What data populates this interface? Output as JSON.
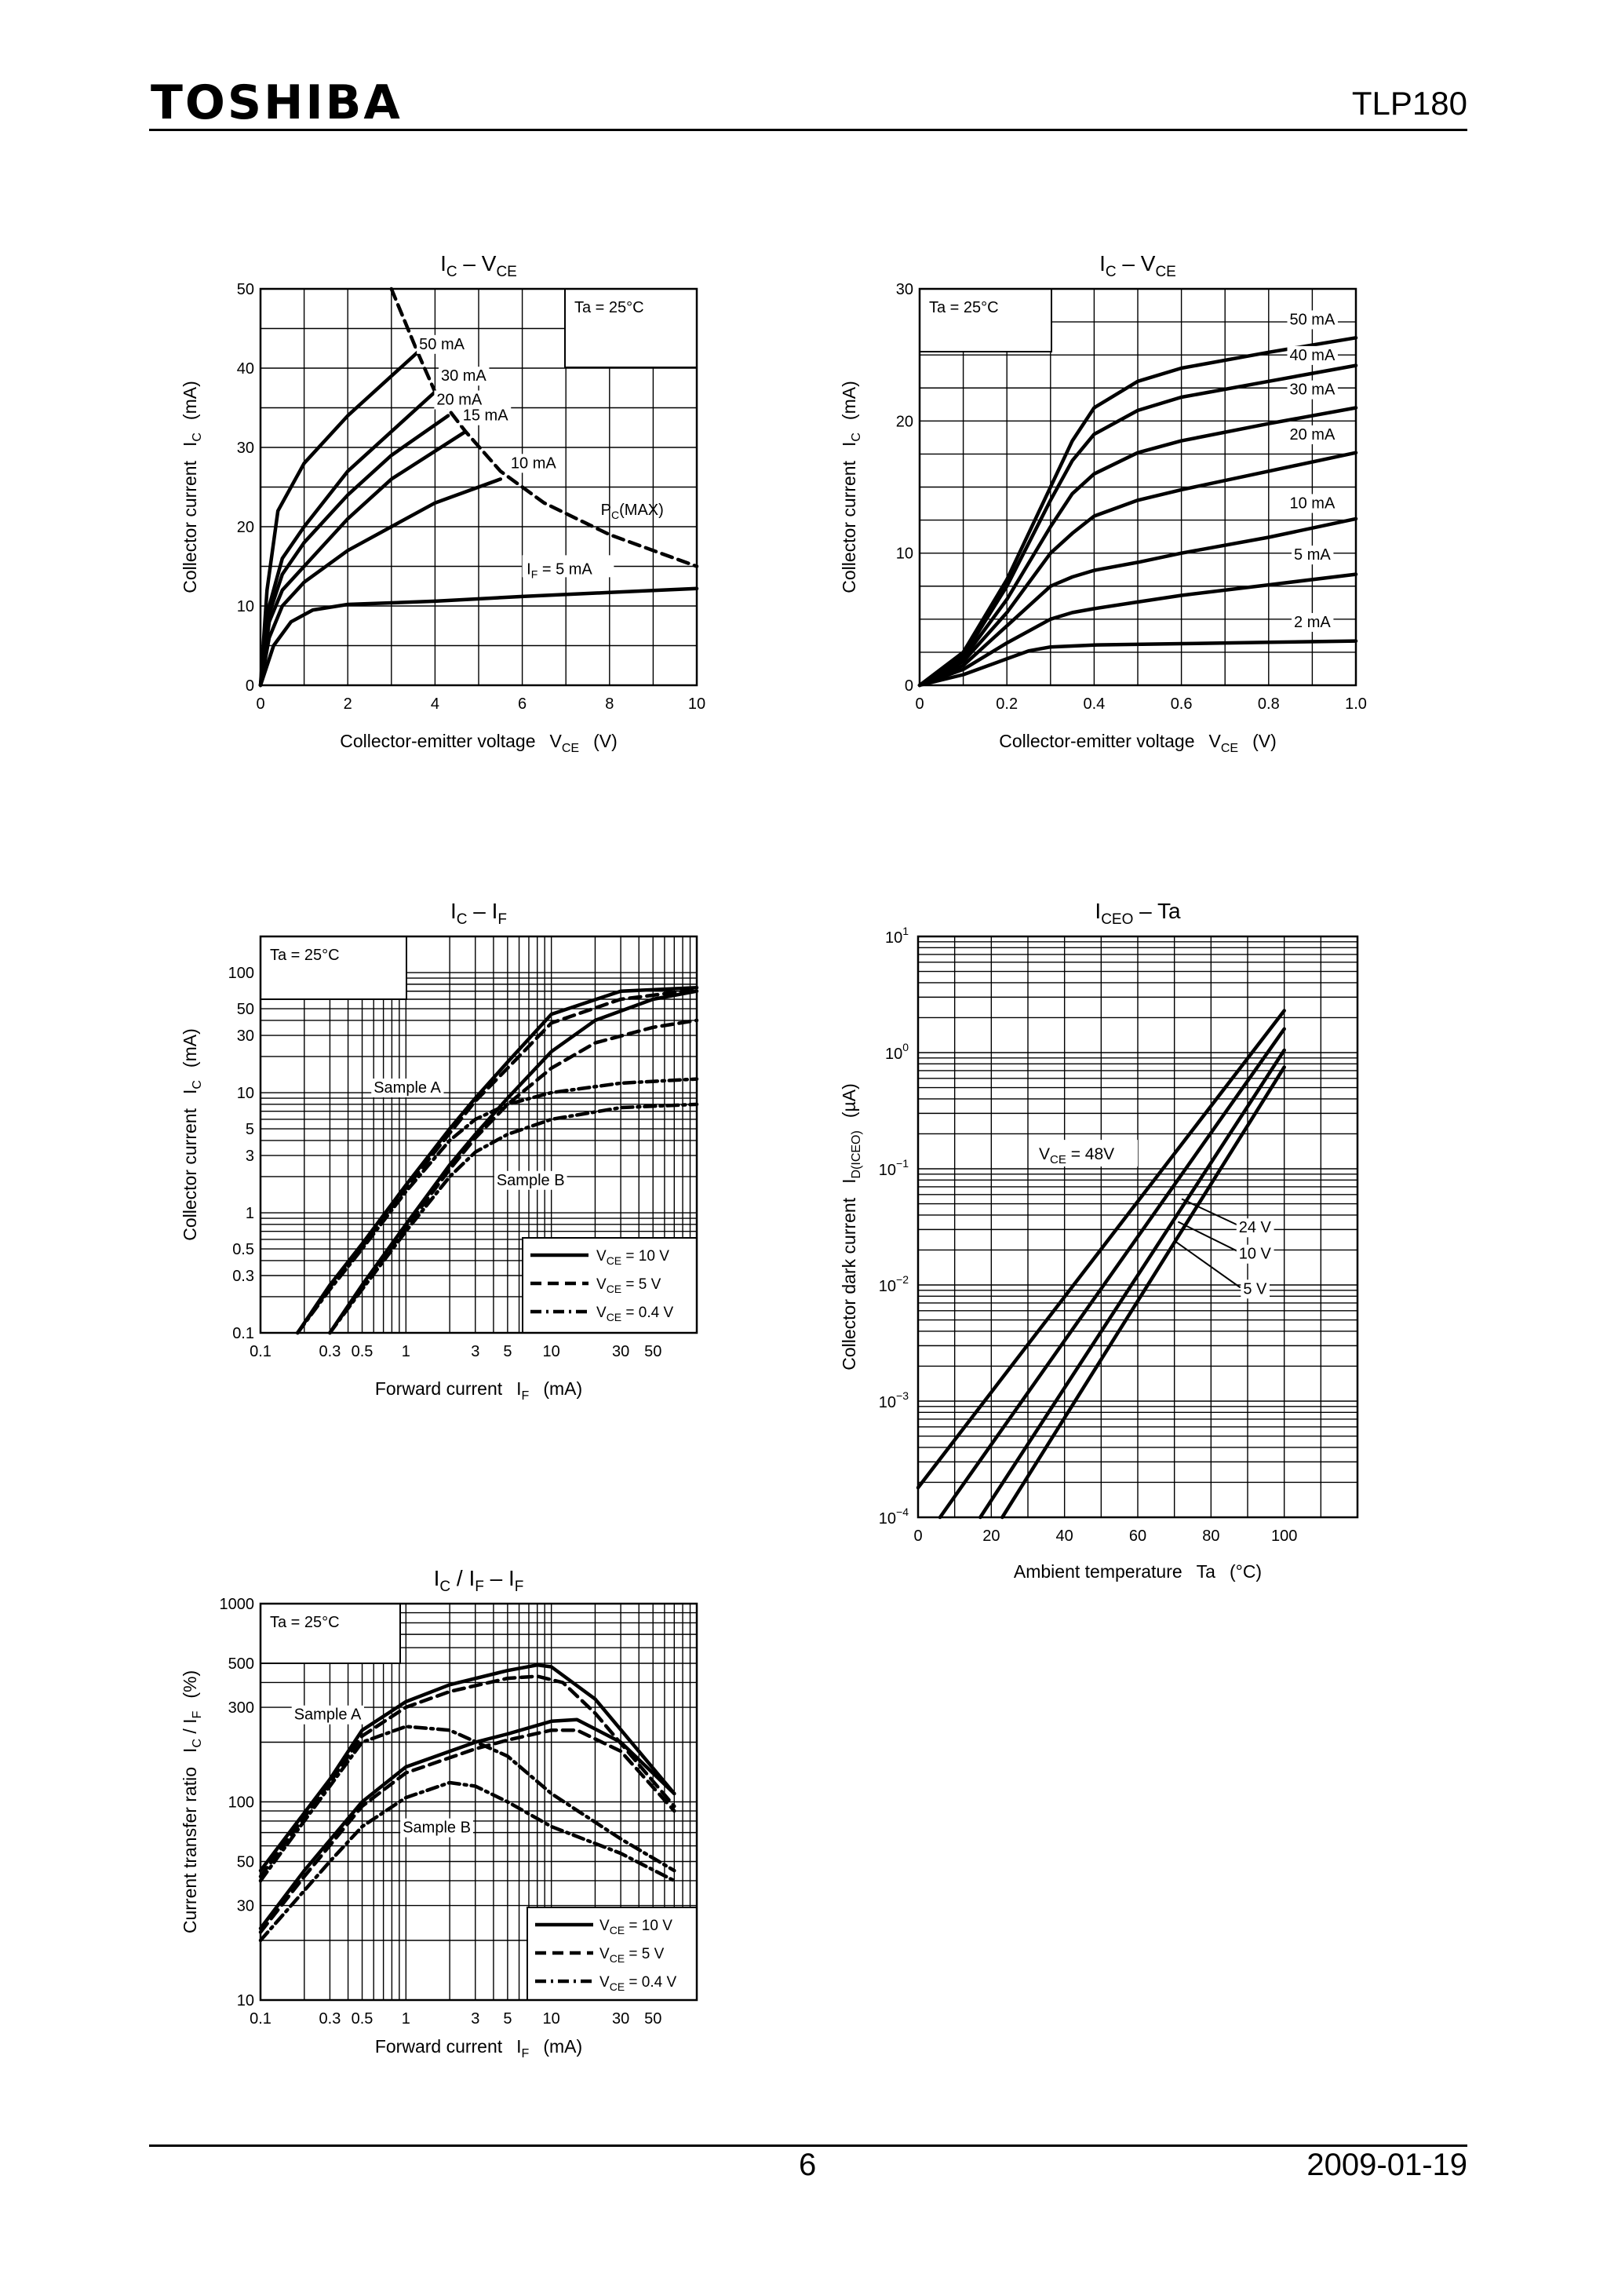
{
  "header": {
    "logo": "TOSHIBA",
    "part_number": "TLP180"
  },
  "footer": {
    "page": "6",
    "date": "2009-01-19"
  },
  "chart_data": [
    {
      "id": "ic_vce_10v",
      "type": "line",
      "title_main": "I",
      "title_sub1": "C",
      "title_mid": " – V",
      "title_sub2": "CE",
      "xlabel": "Collector-emitter voltage",
      "xlabel_sym": "V",
      "xlabel_sub": "CE",
      "xlabel_unit": "(V)",
      "ylabel": "Collector current",
      "ylabel_sym": "I",
      "ylabel_sub": "C",
      "ylabel_unit": "(mA)",
      "xlim": [
        0,
        10
      ],
      "ylim": [
        0,
        50
      ],
      "x_ticks": [
        "0",
        "2",
        "4",
        "6",
        "8",
        "10"
      ],
      "y_ticks": [
        "0",
        "10",
        "20",
        "30",
        "40",
        "50"
      ],
      "condition": "Ta = 25°C",
      "series": [
        {
          "name": "50 mA",
          "x": [
            0,
            0.15,
            0.4,
            1,
            2,
            3,
            3.6
          ],
          "y": [
            0,
            12,
            22,
            28,
            34,
            39,
            42
          ]
        },
        {
          "name": "30 mA",
          "x": [
            0,
            0.2,
            0.5,
            1,
            2,
            3,
            4
          ],
          "y": [
            0,
            10,
            16,
            20,
            27,
            32,
            37
          ]
        },
        {
          "name": "20 mA",
          "x": [
            0,
            0.2,
            0.5,
            1,
            2,
            3,
            4.3
          ],
          "y": [
            0,
            9,
            14,
            18,
            24,
            29,
            34
          ]
        },
        {
          "name": "15 mA",
          "x": [
            0,
            0.2,
            0.5,
            1,
            2,
            3,
            4.7
          ],
          "y": [
            0,
            8,
            12,
            15,
            21,
            26,
            32
          ]
        },
        {
          "name": "10 mA",
          "x": [
            0,
            0.2,
            0.5,
            1,
            2,
            3,
            4,
            5.5
          ],
          "y": [
            0,
            6,
            10,
            13,
            17,
            20,
            23,
            26
          ]
        },
        {
          "name": "IF = 5 mA",
          "x": [
            0,
            0.3,
            0.7,
            1.2,
            2,
            4,
            6,
            8,
            10
          ],
          "y": [
            0,
            5,
            8,
            9.5,
            10.2,
            10.6,
            11.2,
            11.7,
            12.2
          ]
        },
        {
          "name": "PC(MAX)",
          "style": "dashed",
          "x": [
            3,
            3.6,
            4,
            4.7,
            5.5,
            6.5,
            8,
            10
          ],
          "y": [
            50,
            42,
            37,
            32,
            27,
            23,
            19,
            15
          ]
        }
      ],
      "labels": [
        "50 mA",
        "30 mA",
        "20 mA",
        "15 mA",
        "10 mA",
        "P",
        "C",
        "(MAX)",
        "I",
        "F",
        " = 5 mA"
      ]
    },
    {
      "id": "ic_vce_1v",
      "type": "line",
      "title_main": "I",
      "title_sub1": "C",
      "title_mid": " – V",
      "title_sub2": "CE",
      "xlabel": "Collector-emitter voltage",
      "xlabel_sym": "V",
      "xlabel_sub": "CE",
      "xlabel_unit": "(V)",
      "ylabel": "Collector current",
      "ylabel_sym": "I",
      "ylabel_sub": "C",
      "ylabel_unit": "(mA)",
      "xlim": [
        0,
        1.0
      ],
      "ylim": [
        0,
        30
      ],
      "x_ticks": [
        "0",
        "0.2",
        "0.4",
        "0.6",
        "0.8",
        "1.0"
      ],
      "y_ticks": [
        "0",
        "10",
        "20",
        "30"
      ],
      "condition": "Ta = 25°C",
      "series": [
        {
          "name": "50 mA",
          "x": [
            0,
            0.1,
            0.2,
            0.3,
            0.35,
            0.4,
            0.5,
            0.6,
            0.8,
            1.0
          ],
          "y": [
            0,
            2.5,
            8,
            15,
            18.5,
            21,
            23,
            24,
            25.2,
            26.3
          ]
        },
        {
          "name": "40 mA",
          "x": [
            0,
            0.1,
            0.2,
            0.3,
            0.35,
            0.4,
            0.5,
            0.6,
            0.8,
            1.0
          ],
          "y": [
            0,
            2.2,
            7.5,
            14,
            17,
            19,
            20.8,
            21.8,
            23,
            24.2
          ]
        },
        {
          "name": "30 mA",
          "x": [
            0,
            0.1,
            0.2,
            0.3,
            0.35,
            0.4,
            0.5,
            0.6,
            0.8,
            1.0
          ],
          "y": [
            0,
            2,
            6.5,
            12,
            14.5,
            16,
            17.6,
            18.5,
            19.8,
            21
          ]
        },
        {
          "name": "20 mA",
          "x": [
            0,
            0.1,
            0.2,
            0.3,
            0.35,
            0.4,
            0.5,
            0.6,
            0.8,
            1.0
          ],
          "y": [
            0,
            1.8,
            5.5,
            10,
            11.5,
            12.8,
            14,
            14.8,
            16.2,
            17.6
          ]
        },
        {
          "name": "10 mA",
          "x": [
            0,
            0.1,
            0.2,
            0.3,
            0.35,
            0.4,
            0.5,
            0.6,
            0.8,
            1.0
          ],
          "y": [
            0,
            1.5,
            4.5,
            7.5,
            8.2,
            8.7,
            9.3,
            10,
            11.2,
            12.6
          ]
        },
        {
          "name": "5 mA",
          "x": [
            0,
            0.1,
            0.2,
            0.3,
            0.35,
            0.4,
            0.5,
            0.6,
            0.8,
            1.0
          ],
          "y": [
            0,
            1.2,
            3.2,
            5,
            5.5,
            5.8,
            6.3,
            6.8,
            7.6,
            8.4
          ]
        },
        {
          "name": "2 mA",
          "x": [
            0,
            0.1,
            0.2,
            0.25,
            0.3,
            0.4,
            0.6,
            0.8,
            1.0
          ],
          "y": [
            0,
            0.8,
            2,
            2.6,
            2.9,
            3.05,
            3.15,
            3.25,
            3.35
          ]
        }
      ],
      "labels": [
        "50 mA",
        "40 mA",
        "30 mA",
        "20 mA",
        "10 mA",
        "5 mA",
        "2 mA"
      ]
    },
    {
      "id": "ic_if",
      "type": "line",
      "title_main": "I",
      "title_sub1": "C",
      "title_mid": " – I",
      "title_sub2": "F",
      "xlabel": "Forward current",
      "xlabel_sym": "I",
      "xlabel_sub": "F",
      "xlabel_unit": "(mA)",
      "ylabel": "Collector current",
      "ylabel_sym": "I",
      "ylabel_sub": "C",
      "ylabel_unit": "(mA)",
      "xlim": [
        0.1,
        100
      ],
      "ylim": [
        0.1,
        200
      ],
      "x_ticks": [
        "0.1",
        "0.3",
        "0.5",
        "1",
        "3",
        "5",
        "10",
        "30",
        "50"
      ],
      "y_ticks": [
        "0.1",
        "0.3",
        "0.5",
        "1",
        "3",
        "5",
        "10",
        "30",
        "50",
        "100"
      ],
      "condition": "Ta = 25°C",
      "samples": [
        "Sample A",
        "Sample B"
      ],
      "legend": [
        {
          "sym": "V",
          "sub": "CE",
          "val": " = 10 V",
          "style": "solid"
        },
        {
          "sym": "V",
          "sub": "CE",
          "val": " = 5 V",
          "style": "dashed"
        },
        {
          "sym": "V",
          "sub": "CE",
          "val": " = 0.4 V",
          "style": "dashdot"
        }
      ],
      "series": [
        {
          "name": "Sample A 10V",
          "style": "solid",
          "x": [
            0.18,
            0.3,
            0.5,
            1,
            2,
            3,
            5,
            10,
            30,
            100
          ],
          "y": [
            0.1,
            0.25,
            0.55,
            1.7,
            5,
            9,
            18,
            45,
            70,
            75
          ]
        },
        {
          "name": "Sample A 5V",
          "style": "dashed",
          "x": [
            0.18,
            0.3,
            0.5,
            1,
            2,
            3,
            5,
            10,
            30,
            100
          ],
          "y": [
            0.1,
            0.24,
            0.52,
            1.6,
            4.6,
            8.5,
            16,
            38,
            60,
            72
          ]
        },
        {
          "name": "Sample A 0.4V",
          "style": "dashdot",
          "x": [
            0.18,
            0.3,
            0.5,
            1,
            2,
            3,
            5,
            10,
            30,
            100
          ],
          "y": [
            0.1,
            0.23,
            0.5,
            1.5,
            4,
            6,
            8,
            10,
            12,
            13
          ]
        },
        {
          "name": "Sample B 10V",
          "style": "solid",
          "x": [
            0.3,
            0.5,
            1,
            2,
            3,
            5,
            10,
            20,
            50,
            100
          ],
          "y": [
            0.1,
            0.25,
            0.8,
            2.5,
            4.5,
            9,
            22,
            40,
            60,
            70
          ]
        },
        {
          "name": "Sample B 5V",
          "style": "dashed",
          "x": [
            0.3,
            0.5,
            1,
            2,
            3,
            5,
            10,
            20,
            50,
            100
          ],
          "y": [
            0.1,
            0.24,
            0.75,
            2.3,
            4.2,
            8,
            16,
            26,
            35,
            40
          ]
        },
        {
          "name": "Sample B 0.4V",
          "style": "dashdot",
          "x": [
            0.3,
            0.5,
            1,
            2,
            3,
            5,
            10,
            30,
            100
          ],
          "y": [
            0.1,
            0.23,
            0.7,
            2,
            3.2,
            4.5,
            6,
            7.5,
            8
          ]
        }
      ]
    },
    {
      "id": "iceo_ta",
      "type": "line",
      "title_main": "I",
      "title_sub1": "CEO",
      "title_mid": " – Ta",
      "title_sub2": "",
      "xlabel": "Ambient temperature",
      "xlabel_sym": "Ta",
      "xlabel_sub": "",
      "xlabel_unit": "(°C)",
      "ylabel": "Collector dark current",
      "ylabel_sym": "I",
      "ylabel_sub": "D(ICEO)",
      "ylabel_unit": "(µA)",
      "xlim": [
        0,
        120
      ],
      "ylim": [
        0.0001,
        10
      ],
      "x_ticks": [
        "0",
        "20",
        "40",
        "60",
        "80",
        "100"
      ],
      "y_ticks": [
        "10",
        "10",
        "10",
        "10",
        "10",
        "10"
      ],
      "y_exps": [
        "−4",
        "−3",
        "−2",
        "−1",
        "0",
        "1"
      ],
      "annotation": {
        "sym": "V",
        "sub": "CE",
        "val": " = 48V"
      },
      "series": [
        {
          "name": "48 V",
          "x": [
            0,
            100
          ],
          "y": [
            0.00018,
            2.3
          ]
        },
        {
          "name": "24 V",
          "x": [
            6,
            100
          ],
          "y": [
            0.0001,
            1.6
          ]
        },
        {
          "name": "10 V",
          "x": [
            17,
            100
          ],
          "y": [
            0.0001,
            1.05
          ]
        },
        {
          "name": "5 V",
          "x": [
            23,
            100
          ],
          "y": [
            0.0001,
            0.75
          ]
        }
      ],
      "labels": [
        "24 V",
        "10 V",
        "5 V"
      ]
    },
    {
      "id": "ctr_if",
      "type": "line",
      "title_main": "I",
      "title_sub1": "C",
      "title_mid": " / I",
      "title_sub2": "F",
      "title_tail": " – I",
      "title_sub3": "F",
      "xlabel": "Forward current",
      "xlabel_sym": "I",
      "xlabel_sub": "F",
      "xlabel_unit": "(mA)",
      "ylabel": "Current transfer ratio",
      "ylabel_sym": "I",
      "ylabel_sub": "C",
      "ylabel_mid": " / I",
      "ylabel_sub2": "F",
      "ylabel_unit": "(%)",
      "xlim": [
        0.1,
        100
      ],
      "ylim": [
        10,
        1000
      ],
      "x_ticks": [
        "0.1",
        "0.3",
        "0.5",
        "1",
        "3",
        "5",
        "10",
        "30",
        "50"
      ],
      "y_ticks": [
        "10",
        "30",
        "50",
        "100",
        "300",
        "500",
        "1000"
      ],
      "condition": "Ta = 25°C",
      "samples": [
        "Sample A",
        "Sample B"
      ],
      "legend": [
        {
          "sym": "V",
          "sub": "CE",
          "val": " = 10 V",
          "style": "solid"
        },
        {
          "sym": "V",
          "sub": "CE",
          "val": " = 5 V",
          "style": "dashed"
        },
        {
          "sym": "V",
          "sub": "CE",
          "val": " = 0.4 V",
          "style": "dashdot"
        }
      ],
      "series": [
        {
          "name": "Sample A 10V",
          "style": "solid",
          "x": [
            0.1,
            0.3,
            0.5,
            1,
            2,
            5,
            8,
            10,
            20,
            70
          ],
          "y": [
            45,
            130,
            230,
            320,
            390,
            460,
            490,
            480,
            330,
            110
          ]
        },
        {
          "name": "Sample A 5V",
          "style": "dashed",
          "x": [
            0.1,
            0.3,
            0.5,
            1,
            2,
            5,
            8,
            12,
            20,
            70
          ],
          "y": [
            42,
            125,
            215,
            300,
            360,
            420,
            430,
            400,
            280,
            95
          ]
        },
        {
          "name": "Sample A 0.4V",
          "style": "dashdot",
          "x": [
            0.1,
            0.3,
            0.5,
            1,
            2,
            5,
            10,
            30,
            70
          ],
          "y": [
            40,
            120,
            200,
            240,
            230,
            170,
            110,
            65,
            45
          ]
        },
        {
          "name": "Sample B 10V",
          "style": "solid",
          "x": [
            0.1,
            0.2,
            0.5,
            1,
            3,
            5,
            10,
            15,
            30,
            70
          ],
          "y": [
            23,
            45,
            100,
            150,
            200,
            220,
            255,
            260,
            200,
            110
          ]
        },
        {
          "name": "Sample B 5V",
          "style": "dashed",
          "x": [
            0.1,
            0.2,
            0.5,
            1,
            3,
            5,
            10,
            15,
            30,
            70
          ],
          "y": [
            22,
            42,
            95,
            140,
            185,
            205,
            230,
            230,
            180,
            90
          ]
        },
        {
          "name": "Sample B 0.4V",
          "style": "dashdot",
          "x": [
            0.1,
            0.3,
            0.5,
            1,
            2,
            3,
            5,
            10,
            30,
            70
          ],
          "y": [
            20,
            50,
            75,
            105,
            125,
            120,
            100,
            75,
            55,
            40
          ]
        }
      ]
    }
  ]
}
